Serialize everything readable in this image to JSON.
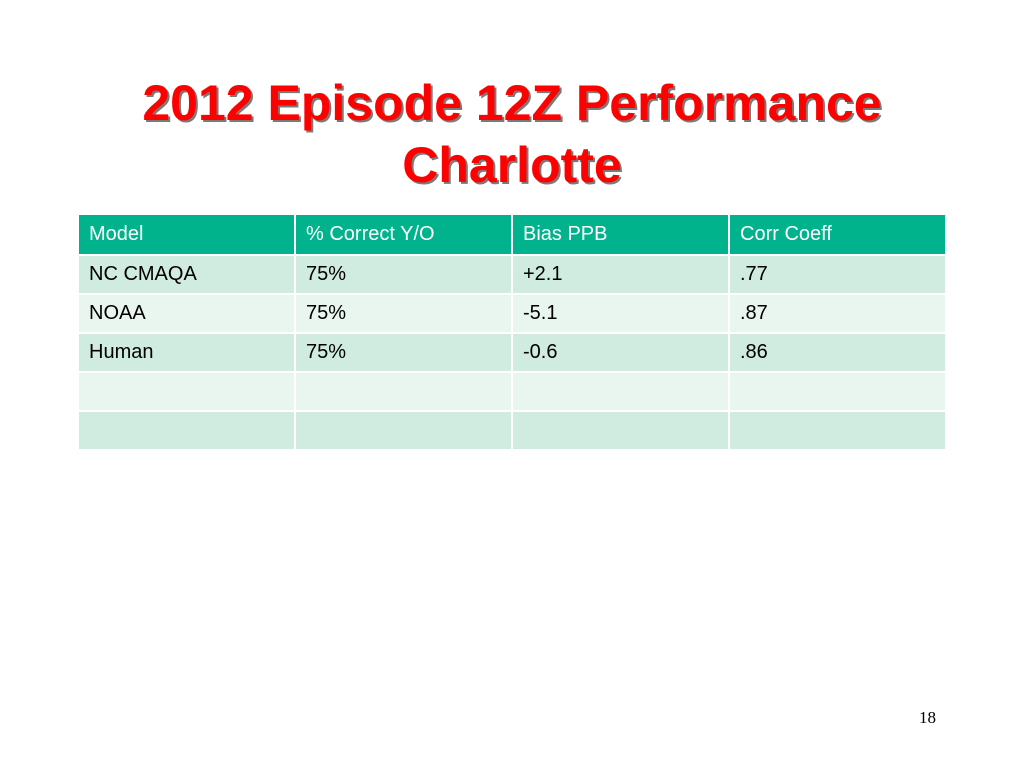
{
  "slide": {
    "title_line1": "2012 Episode 12Z Performance",
    "title_line2": "Charlotte",
    "page_number": "18"
  },
  "table": {
    "headers": [
      "Model",
      "% Correct Y/O",
      "Bias PPB",
      "Corr Coeff"
    ],
    "rows": [
      [
        "NC CMAQA",
        "75%",
        "+2.1",
        ".77"
      ],
      [
        "NOAA",
        "75%",
        "-5.1",
        ".87"
      ],
      [
        "Human",
        "75%",
        "-0.6",
        ".86"
      ],
      [
        "",
        "",
        "",
        ""
      ],
      [
        "",
        "",
        "",
        ""
      ]
    ]
  },
  "colors": {
    "title": "#ff0000",
    "header_bg": "#00b38c",
    "row_band_dark": "#d0ebdf",
    "row_band_light": "#e9f5ef"
  }
}
